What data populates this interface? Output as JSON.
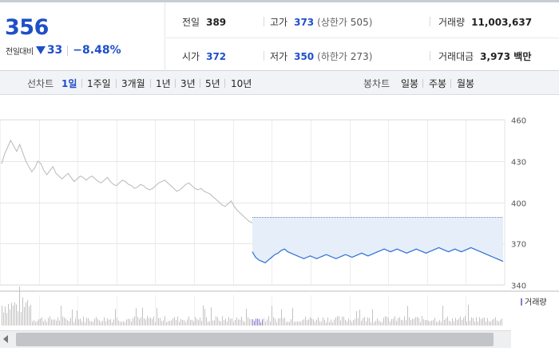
{
  "summary": {
    "current_price": "356",
    "change_label": "전일대비",
    "change_amount": "33",
    "change_percent": "−8.48%",
    "prev_close": {
      "label": "전일",
      "value": "389"
    },
    "high": {
      "label": "고가",
      "value": "373",
      "limit_label": "(상한가",
      "limit_value": "505",
      "close": ")"
    },
    "volume": {
      "label": "거래량",
      "value": "11,003,637"
    },
    "open": {
      "label": "시가",
      "value": "372"
    },
    "low": {
      "label": "저가",
      "value": "350",
      "limit_label": "(하한가",
      "limit_value": "273",
      "close": ")"
    },
    "trade_value": {
      "label": "거래대금",
      "value": "3,973 백만"
    }
  },
  "toolbar": {
    "line_chart_label": "선차트",
    "periods": [
      "1일",
      "1주일",
      "3개월",
      "1년",
      "3년",
      "5년",
      "10년"
    ],
    "active_period": "1일",
    "candle_chart_label": "봉차트",
    "candles": [
      "일봉",
      "주봉",
      "월봉"
    ]
  },
  "colors": {
    "accent_blue": "#1f4fc7",
    "today_line": "#2a6fd6",
    "prev_day_line": "#b8b8b8",
    "band_fill": "#e6eefa",
    "volume_bar": "#c2c2c2",
    "volume_legend": "#8a7ac8"
  },
  "chart_data": {
    "type": "line",
    "ylim": [
      340,
      460
    ],
    "y_ticks": [
      460,
      430,
      400,
      370,
      340
    ],
    "grid": true,
    "reference_price": 389,
    "series": [
      {
        "values": [
          428,
          435,
          440,
          445,
          441,
          437,
          442,
          436,
          430,
          426,
          422,
          425,
          430,
          428,
          423,
          420,
          423,
          426,
          421,
          419,
          417,
          419,
          421,
          418,
          415,
          417,
          419,
          418,
          416,
          418,
          419,
          417,
          415,
          414,
          416,
          418,
          415,
          413,
          412,
          414,
          416,
          415,
          413,
          412,
          410,
          411,
          413,
          412,
          410,
          409,
          410,
          412,
          414,
          415,
          416,
          414,
          412,
          410,
          408,
          409,
          411,
          413,
          414,
          412,
          410,
          409,
          410,
          408,
          407,
          406,
          404,
          402,
          400,
          398,
          397,
          399,
          401,
          397,
          394,
          392,
          390,
          388,
          386,
          385
        ]
      },
      {
        "values": [
          364,
          360,
          358,
          357,
          356,
          358,
          360,
          362,
          363,
          365,
          366,
          364,
          363,
          362,
          361,
          360,
          359,
          360,
          361,
          360,
          359,
          360,
          361,
          362,
          361,
          360,
          359,
          360,
          361,
          362,
          361,
          360,
          361,
          362,
          363,
          362,
          361,
          362,
          363,
          364,
          365,
          366,
          365,
          364,
          365,
          366,
          365,
          364,
          363,
          364,
          365,
          366,
          365,
          364,
          363,
          364,
          365,
          366,
          367,
          366,
          365,
          364,
          365,
          366,
          365,
          364,
          365,
          366,
          367,
          366,
          365,
          364,
          363,
          362,
          361,
          360,
          359,
          358,
          357
        ]
      }
    ],
    "volume_label": "거래량"
  }
}
